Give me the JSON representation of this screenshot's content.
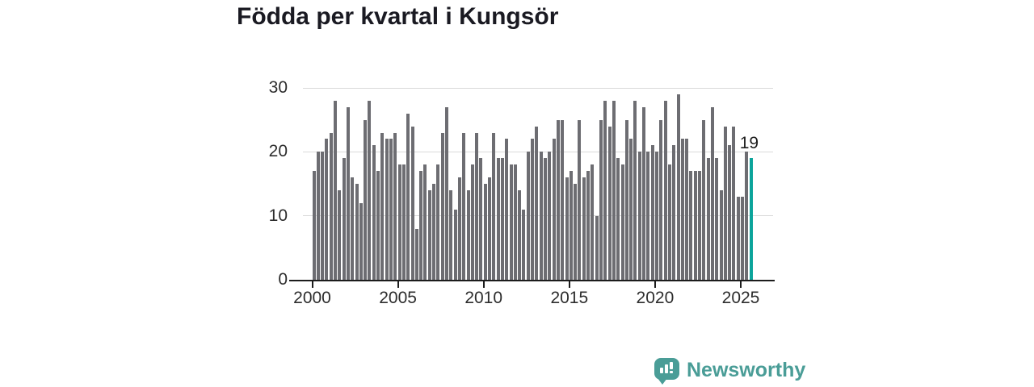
{
  "title": "Födda per kvartal i Kungsör",
  "chart_data": {
    "type": "bar",
    "title": "Födda per kvartal i Kungsör",
    "x_start": "2000 Q1",
    "x_end": "2025 Q3",
    "frequency": "quarterly",
    "values": [
      17,
      20,
      20,
      22,
      23,
      28,
      14,
      19,
      27,
      16,
      15,
      12,
      25,
      28,
      21,
      17,
      23,
      22,
      22,
      23,
      18,
      18,
      26,
      24,
      8,
      17,
      18,
      14,
      15,
      18,
      23,
      27,
      14,
      11,
      16,
      23,
      14,
      18,
      23,
      19,
      15,
      16,
      23,
      19,
      19,
      22,
      18,
      18,
      14,
      11,
      20,
      22,
      24,
      20,
      19,
      20,
      22,
      25,
      25,
      16,
      17,
      15,
      25,
      16,
      17,
      18,
      10,
      25,
      28,
      24,
      28,
      19,
      18,
      25,
      22,
      28,
      20,
      27,
      20,
      21,
      20,
      25,
      28,
      18,
      21,
      29,
      22,
      22,
      17,
      17,
      17,
      25,
      19,
      27,
      19,
      14,
      24,
      21,
      24,
      13,
      13,
      20,
      19
    ],
    "x_tick_labels": [
      "2000",
      "2005",
      "2010",
      "2015",
      "2020",
      "2025"
    ],
    "y_tick_labels": [
      "0",
      "10",
      "20",
      "30"
    ],
    "ylim": [
      0,
      30
    ],
    "grid": "horizontal",
    "legend": "none",
    "xlabel": "",
    "ylabel": "",
    "bar_color": "#6d6d72",
    "highlight_color": "#0ca49b",
    "highlight_index": 102,
    "highlight_label": "19"
  },
  "logo": {
    "text": "Newsworthy",
    "color": "#4a9d97",
    "icon": "bar-chart-speech-bubble"
  }
}
